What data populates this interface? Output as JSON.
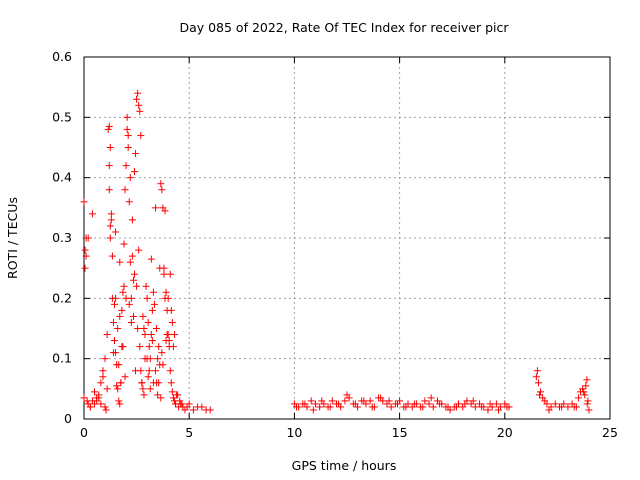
{
  "chart_data": {
    "type": "scatter",
    "title": "Day 085 of 2022, Rate Of TEC Index for receiver picr",
    "xlabel": "GPS time / hours",
    "ylabel": "ROTI / TECUs",
    "xlim": [
      0,
      25
    ],
    "ylim": [
      0,
      0.6
    ],
    "xticks": [
      0,
      5,
      10,
      15,
      20,
      25
    ],
    "yticks": [
      0,
      0.1,
      0.2,
      0.3,
      0.4,
      0.5,
      0.6
    ],
    "xtick_labels": [
      "0",
      "5",
      "10",
      "15",
      "20",
      "25"
    ],
    "ytick_labels": [
      "0",
      "0.1",
      "0.2",
      "0.3",
      "0.4",
      "0.5",
      "0.6"
    ],
    "grid": true,
    "marker": "+",
    "marker_color": "#ff0000",
    "series": [
      {
        "name": "ROTI",
        "x": [
          0.0,
          0.05,
          0.1,
          0.15,
          0.2,
          0.3,
          0.4,
          0.5,
          0.6,
          0.7,
          0.8,
          0.9,
          1.0,
          1.1,
          1.15,
          1.2,
          1.25,
          1.3,
          1.35,
          1.4,
          1.45,
          1.5,
          1.55,
          1.6,
          1.65,
          1.7,
          1.75,
          1.8,
          1.85,
          1.9,
          1.95,
          2.0,
          2.05,
          2.1,
          2.15,
          2.2,
          2.25,
          2.3,
          2.35,
          2.4,
          2.45,
          2.5,
          2.55,
          2.6,
          2.65,
          2.7,
          2.75,
          2.8,
          2.85,
          2.9,
          2.95,
          3.0,
          3.05,
          3.1,
          3.15,
          3.2,
          3.25,
          3.3,
          3.35,
          3.4,
          3.45,
          3.5,
          3.55,
          3.6,
          3.65,
          3.7,
          3.75,
          3.8,
          3.85,
          3.9,
          3.95,
          4.0,
          4.05,
          4.1,
          4.15,
          4.2,
          4.25,
          4.3,
          4.35,
          4.4,
          4.5,
          4.6,
          4.7,
          4.8,
          4.9,
          5.0,
          5.2,
          5.4,
          5.6,
          5.8,
          6.0,
          0.05,
          0.1,
          0.5,
          0.9,
          1.2,
          1.25,
          1.3,
          1.5,
          1.7,
          1.9,
          2.05,
          2.1,
          2.2,
          2.3,
          2.6,
          2.65,
          2.7,
          3.2,
          3.4,
          3.8,
          3.85,
          4.0,
          4.1,
          4.2,
          4.3,
          1.2,
          1.35,
          1.6,
          1.8,
          2.0,
          2.4,
          2.8,
          3.0,
          3.3,
          3.6,
          3.9,
          4.05,
          1.1,
          1.4,
          1.5,
          1.7,
          2.15,
          2.25,
          2.5,
          2.9,
          3.1,
          3.5,
          3.7,
          3.95,
          4.15,
          4.25,
          1.25,
          1.45,
          1.65,
          1.85,
          2.35,
          2.55,
          2.75,
          3.05,
          3.25,
          3.45,
          3.75,
          4.45,
          0.3,
          0.6,
          0.8,
          1.0,
          1.05,
          1.55,
          1.75,
          1.95,
          2.45,
          2.85,
          3.15,
          3.55,
          3.65,
          4.35,
          4.55,
          4.65,
          0.0,
          0.2,
          0.4,
          0.7,
          10.0,
          10.2,
          10.4,
          10.6,
          10.8,
          11.0,
          11.2,
          11.4,
          11.6,
          11.8,
          12.0,
          12.2,
          12.4,
          12.6,
          12.8,
          13.0,
          13.2,
          13.4,
          13.6,
          13.8,
          14.0,
          14.2,
          14.4,
          14.6,
          14.8,
          15.0,
          15.2,
          15.4,
          15.6,
          15.8,
          16.0,
          16.2,
          16.4,
          16.6,
          16.8,
          17.0,
          17.2,
          17.4,
          17.6,
          17.8,
          18.0,
          18.2,
          18.4,
          18.6,
          18.8,
          19.0,
          19.2,
          19.4,
          19.6,
          19.8,
          20.0,
          20.2,
          10.1,
          10.5,
          10.9,
          11.3,
          11.7,
          12.1,
          12.5,
          12.9,
          13.3,
          13.7,
          14.1,
          14.5,
          14.9,
          15.3,
          15.7,
          16.1,
          16.5,
          16.9,
          17.3,
          17.7,
          18.1,
          18.5,
          18.9,
          19.3,
          19.7,
          20.1,
          21.5,
          21.55,
          21.6,
          21.7,
          21.8,
          21.9,
          22.0,
          22.2,
          22.4,
          22.6,
          22.8,
          23.0,
          23.2,
          23.4,
          23.5,
          23.6,
          23.7,
          23.8,
          23.85,
          23.9,
          23.95,
          24.0,
          21.65,
          22.1,
          22.7,
          23.3,
          23.75,
          23.92
        ],
        "y": [
          0.035,
          0.28,
          0.3,
          0.03,
          0.025,
          0.02,
          0.03,
          0.025,
          0.035,
          0.04,
          0.06,
          0.08,
          0.1,
          0.14,
          0.48,
          0.42,
          0.3,
          0.34,
          0.2,
          0.16,
          0.13,
          0.11,
          0.09,
          0.05,
          0.03,
          0.025,
          0.06,
          0.12,
          0.21,
          0.29,
          0.38,
          0.42,
          0.5,
          0.45,
          0.36,
          0.26,
          0.2,
          0.27,
          0.23,
          0.41,
          0.44,
          0.53,
          0.54,
          0.28,
          0.12,
          0.08,
          0.06,
          0.05,
          0.15,
          0.14,
          0.22,
          0.2,
          0.16,
          0.12,
          0.1,
          0.14,
          0.13,
          0.21,
          0.19,
          0.08,
          0.06,
          0.1,
          0.12,
          0.25,
          0.39,
          0.38,
          0.35,
          0.24,
          0.2,
          0.21,
          0.18,
          0.14,
          0.12,
          0.08,
          0.06,
          0.045,
          0.035,
          0.03,
          0.025,
          0.04,
          0.02,
          0.025,
          0.02,
          0.015,
          0.02,
          0.025,
          0.015,
          0.02,
          0.02,
          0.015,
          0.015,
          0.25,
          0.27,
          0.045,
          0.07,
          0.485,
          0.45,
          0.33,
          0.31,
          0.26,
          0.22,
          0.48,
          0.47,
          0.4,
          0.33,
          0.52,
          0.51,
          0.47,
          0.265,
          0.35,
          0.25,
          0.345,
          0.2,
          0.24,
          0.16,
          0.14,
          0.38,
          0.27,
          0.15,
          0.18,
          0.2,
          0.24,
          0.17,
          0.1,
          0.06,
          0.09,
          0.13,
          0.13,
          0.05,
          0.11,
          0.2,
          0.17,
          0.19,
          0.16,
          0.22,
          0.1,
          0.08,
          0.04,
          0.11,
          0.14,
          0.18,
          0.12,
          0.32,
          0.19,
          0.09,
          0.12,
          0.17,
          0.15,
          0.06,
          0.07,
          0.18,
          0.15,
          0.09,
          0.04,
          0.02,
          0.03,
          0.025,
          0.02,
          0.015,
          0.055,
          0.06,
          0.07,
          0.08,
          0.04,
          0.05,
          0.06,
          0.035,
          0.025,
          0.03,
          0.025,
          0.36,
          0.3,
          0.34,
          0.035,
          0.025,
          0.02,
          0.025,
          0.02,
          0.03,
          0.025,
          0.02,
          0.025,
          0.02,
          0.03,
          0.025,
          0.02,
          0.03,
          0.035,
          0.025,
          0.02,
          0.03,
          0.025,
          0.03,
          0.02,
          0.035,
          0.03,
          0.025,
          0.02,
          0.025,
          0.03,
          0.02,
          0.025,
          0.02,
          0.025,
          0.02,
          0.03,
          0.025,
          0.02,
          0.03,
          0.025,
          0.02,
          0.015,
          0.02,
          0.025,
          0.02,
          0.03,
          0.025,
          0.02,
          0.025,
          0.02,
          0.015,
          0.02,
          0.025,
          0.02,
          0.025,
          0.02,
          0.02,
          0.025,
          0.015,
          0.03,
          0.02,
          0.025,
          0.04,
          0.025,
          0.03,
          0.02,
          0.035,
          0.03,
          0.025,
          0.02,
          0.025,
          0.02,
          0.035,
          0.025,
          0.02,
          0.02,
          0.025,
          0.03,
          0.02,
          0.025,
          0.015,
          0.02,
          0.07,
          0.08,
          0.06,
          0.045,
          0.035,
          0.03,
          0.025,
          0.02,
          0.025,
          0.02,
          0.025,
          0.02,
          0.025,
          0.02,
          0.035,
          0.045,
          0.05,
          0.04,
          0.055,
          0.065,
          0.03,
          0.015,
          0.04,
          0.015,
          0.02,
          0.02,
          0.045,
          0.025
        ]
      }
    ]
  }
}
